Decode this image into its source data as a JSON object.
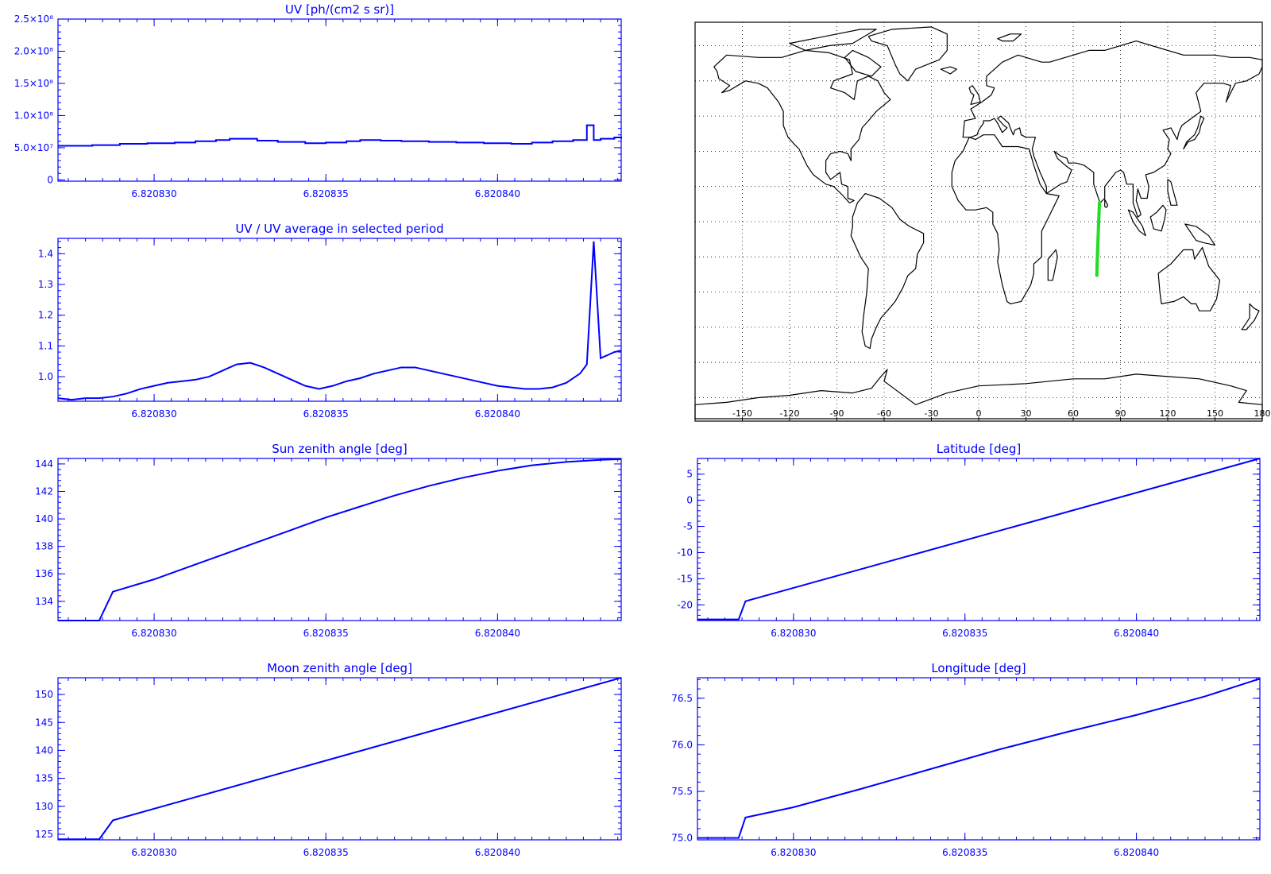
{
  "chart_data": [
    {
      "id": "uv",
      "type": "line",
      "title": "UV [ph/(cm2 s sr)]",
      "xlabel": "",
      "ylabel": "",
      "xlim": [
        6.8208272,
        6.8208436
      ],
      "ylim": [
        -2000000,
        250000000
      ],
      "x_ticks": [
        6.82083,
        6.820835,
        6.82084
      ],
      "x_tick_labels": [
        "6.820830",
        "6.820835",
        "6.820840"
      ],
      "y_ticks": [
        0,
        50000000,
        100000000,
        150000000,
        200000000,
        250000000
      ],
      "y_tick_labels": [
        "0",
        "5.0×10⁷",
        "1.0×10⁸",
        "1.5×10⁸",
        "2.0×10⁸",
        "2.5×10⁸"
      ],
      "style": "step",
      "series": [
        {
          "x": [
            6.8208272,
            6.8208282,
            6.820829,
            6.8208298,
            6.8208306,
            6.8208312,
            6.8208318,
            6.8208322,
            6.820833,
            6.8208336,
            6.8208344,
            6.820835,
            6.8208356,
            6.820836,
            6.8208366,
            6.8208372,
            6.820838,
            6.8208388,
            6.8208396,
            6.8208404,
            6.820841,
            6.8208416,
            6.8208422,
            6.8208426,
            6.8208428,
            6.820843,
            6.8208434,
            6.8208436
          ],
          "y": [
            53000000,
            54000000,
            56000000,
            57000000,
            58000000,
            60000000,
            62000000,
            64000000,
            61000000,
            59000000,
            57000000,
            58000000,
            60000000,
            62000000,
            61000000,
            60000000,
            59000000,
            58000000,
            57000000,
            56000000,
            58000000,
            60000000,
            62000000,
            85000000,
            62000000,
            64000000,
            66000000,
            64000000
          ]
        }
      ]
    },
    {
      "id": "ratio",
      "type": "line",
      "title": "UV / UV average in selected period",
      "xlabel": "",
      "ylabel": "",
      "xlim": [
        6.8208272,
        6.8208436
      ],
      "ylim": [
        0.92,
        1.45
      ],
      "x_ticks": [
        6.82083,
        6.820835,
        6.82084
      ],
      "x_tick_labels": [
        "6.820830",
        "6.820835",
        "6.820840"
      ],
      "y_ticks": [
        1.0,
        1.1,
        1.2,
        1.3,
        1.4
      ],
      "y_tick_labels": [
        "1.0",
        "1.1",
        "1.2",
        "1.3",
        "1.4"
      ],
      "series": [
        {
          "x": [
            6.8208272,
            6.8208276,
            6.820828,
            6.8208284,
            6.8208288,
            6.8208292,
            6.8208296,
            6.82083,
            6.8208304,
            6.8208308,
            6.8208312,
            6.8208316,
            6.820832,
            6.8208324,
            6.8208328,
            6.8208332,
            6.8208336,
            6.820834,
            6.8208344,
            6.8208348,
            6.8208352,
            6.8208356,
            6.820836,
            6.8208364,
            6.8208368,
            6.8208372,
            6.8208376,
            6.820838,
            6.8208384,
            6.8208388,
            6.8208392,
            6.8208396,
            6.82084,
            6.8208404,
            6.8208408,
            6.8208412,
            6.8208416,
            6.820842,
            6.8208424,
            6.8208426,
            6.8208428,
            6.820843,
            6.8208432,
            6.8208434,
            6.8208436
          ],
          "y": [
            0.93,
            0.925,
            0.93,
            0.93,
            0.935,
            0.945,
            0.96,
            0.97,
            0.98,
            0.985,
            0.99,
            1.0,
            1.02,
            1.04,
            1.045,
            1.03,
            1.01,
            0.99,
            0.97,
            0.96,
            0.97,
            0.985,
            0.995,
            1.01,
            1.02,
            1.03,
            1.03,
            1.02,
            1.01,
            1.0,
            0.99,
            0.98,
            0.97,
            0.965,
            0.96,
            0.96,
            0.965,
            0.98,
            1.01,
            1.04,
            1.44,
            1.06,
            1.07,
            1.08,
            1.085
          ]
        }
      ]
    },
    {
      "id": "sun",
      "type": "line",
      "title": "Sun zenith angle [deg]",
      "xlabel": "",
      "ylabel": "",
      "xlim": [
        6.8208272,
        6.8208436
      ],
      "ylim": [
        132.6,
        144.4
      ],
      "x_ticks": [
        6.82083,
        6.820835,
        6.82084
      ],
      "x_tick_labels": [
        "6.820830",
        "6.820835",
        "6.820840"
      ],
      "y_ticks": [
        134,
        136,
        138,
        140,
        142,
        144
      ],
      "y_tick_labels": [
        "134",
        "136",
        "138",
        "140",
        "142",
        "144"
      ],
      "series": [
        {
          "x": [
            6.8208272,
            6.8208284,
            6.8208288,
            6.82083,
            6.820831,
            6.820832,
            6.820833,
            6.820834,
            6.820835,
            6.820836,
            6.820837,
            6.820838,
            6.820839,
            6.82084,
            6.820841,
            6.820842,
            6.820843,
            6.8208436
          ],
          "y": [
            132.6,
            132.6,
            134.7,
            135.6,
            136.5,
            137.4,
            138.3,
            139.2,
            140.1,
            140.9,
            141.7,
            142.4,
            143.0,
            143.5,
            143.9,
            144.15,
            144.3,
            144.35
          ]
        }
      ]
    },
    {
      "id": "moon",
      "type": "line",
      "title": "Moon zenith angle [deg]",
      "xlabel": "",
      "ylabel": "",
      "xlim": [
        6.8208272,
        6.8208436
      ],
      "ylim": [
        124.0,
        153.0
      ],
      "x_ticks": [
        6.82083,
        6.820835,
        6.82084
      ],
      "x_tick_labels": [
        "6.820830",
        "6.820835",
        "6.820840"
      ],
      "y_ticks": [
        125,
        130,
        135,
        140,
        145,
        150
      ],
      "y_tick_labels": [
        "125",
        "130",
        "135",
        "140",
        "145",
        "150"
      ],
      "series": [
        {
          "x": [
            6.8208272,
            6.8208284,
            6.8208288,
            6.8208436
          ],
          "y": [
            124.1,
            124.1,
            127.5,
            153.0
          ]
        }
      ]
    },
    {
      "id": "lat",
      "type": "line",
      "title": "Latitude [deg]",
      "xlabel": "",
      "ylabel": "",
      "xlim": [
        6.8208272,
        6.8208436
      ],
      "ylim": [
        -23.0,
        8.0
      ],
      "x_ticks": [
        6.82083,
        6.820835,
        6.82084
      ],
      "x_tick_labels": [
        "6.820830",
        "6.820835",
        "6.820840"
      ],
      "y_ticks": [
        -20,
        -15,
        -10,
        -5,
        0,
        5
      ],
      "y_tick_labels": [
        "-20",
        "-15",
        "-10",
        "-5",
        "0",
        "5"
      ],
      "series": [
        {
          "x": [
            6.8208272,
            6.8208284,
            6.8208286,
            6.8208436
          ],
          "y": [
            -22.8,
            -22.8,
            -19.3,
            8.0
          ]
        }
      ]
    },
    {
      "id": "lon",
      "type": "line",
      "title": "Longitude [deg]",
      "xlabel": "",
      "ylabel": "",
      "xlim": [
        6.8208272,
        6.8208436
      ],
      "ylim": [
        74.98,
        76.72
      ],
      "x_ticks": [
        6.82083,
        6.820835,
        6.82084
      ],
      "x_tick_labels": [
        "6.820830",
        "6.820835",
        "6.820840"
      ],
      "y_ticks": [
        75.0,
        75.5,
        76.0,
        76.5
      ],
      "y_tick_labels": [
        "75.0",
        "75.5",
        "76.0",
        "76.5"
      ],
      "series": [
        {
          "x": [
            6.8208272,
            6.8208284,
            6.8208286,
            6.82083,
            6.820832,
            6.820834,
            6.820836,
            6.820838,
            6.82084,
            6.820842,
            6.8208436
          ],
          "y": [
            75.0,
            75.0,
            75.22,
            75.33,
            75.53,
            75.74,
            75.95,
            76.14,
            76.32,
            76.52,
            76.71
          ]
        }
      ]
    },
    {
      "id": "map",
      "type": "scatter",
      "title": "",
      "xlabel": "",
      "ylabel": "",
      "xlim": [
        -180,
        180
      ],
      "ylim": [
        -90,
        90
      ],
      "x_ticks": [
        -150,
        -120,
        -90,
        -60,
        -30,
        0,
        30,
        60,
        90,
        120,
        150,
        180
      ],
      "x_tick_labels": [
        "-150",
        "-120",
        "-90",
        "-60",
        "-30",
        "0",
        "30",
        "60",
        "90",
        "120",
        "150",
        "180"
      ],
      "grid": true,
      "track": {
        "color": "#22dd22",
        "lon": [
          75.0,
          75.2,
          75.5,
          75.8,
          76.1,
          76.4,
          76.7
        ],
        "lat": [
          -22.8,
          -18.0,
          -12.5,
          -7.0,
          -1.5,
          3.5,
          8.0
        ]
      }
    }
  ],
  "colors": {
    "line": "#0000ff",
    "axis": "#0000ff",
    "map_outline": "#000000",
    "track": "#22dd22"
  }
}
